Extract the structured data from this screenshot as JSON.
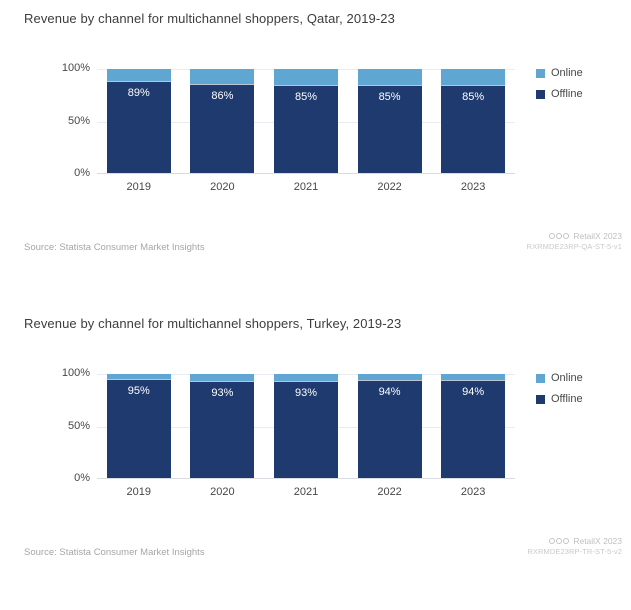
{
  "chart_data": [
    {
      "type": "bar",
      "stacked": true,
      "title": "Revenue by channel for multichannel shoppers, Qatar, 2019-23",
      "categories": [
        "2019",
        "2020",
        "2021",
        "2022",
        "2023"
      ],
      "series": [
        {
          "name": "Offline",
          "color": "#1e3a6e",
          "values": [
            89,
            86,
            85,
            85,
            85
          ]
        },
        {
          "name": "Online",
          "color": "#5fa7d2",
          "values": [
            11,
            14,
            15,
            15,
            15
          ]
        }
      ],
      "ylim": [
        0,
        100
      ],
      "yticks": [
        {
          "label": "0%",
          "value": 0
        },
        {
          "label": "50%",
          "value": 50
        },
        {
          "label": "100%",
          "value": 100
        }
      ],
      "grid": true,
      "legend_position": "right",
      "source": "Source: Statista Consumer Market Insights",
      "attribution": "RetailX 2023",
      "doc_code": "RXRMDE23RP-QA-ST-5-v1"
    },
    {
      "type": "bar",
      "stacked": true,
      "title": "Revenue by channel for multichannel shoppers, Turkey, 2019-23",
      "categories": [
        "2019",
        "2020",
        "2021",
        "2022",
        "2023"
      ],
      "series": [
        {
          "name": "Offline",
          "color": "#1e3a6e",
          "values": [
            95,
            93,
            93,
            94,
            94
          ]
        },
        {
          "name": "Online",
          "color": "#5fa7d2",
          "values": [
            5,
            7,
            7,
            6,
            6
          ]
        }
      ],
      "ylim": [
        0,
        100
      ],
      "yticks": [
        {
          "label": "0%",
          "value": 0
        },
        {
          "label": "50%",
          "value": 50
        },
        {
          "label": "100%",
          "value": 100
        }
      ],
      "grid": true,
      "legend_position": "right",
      "source": "Source: Statista Consumer Market Insights",
      "attribution": "RetailX 2023",
      "doc_code": "RXRMDE23RP-TR-ST-5-v2"
    }
  ]
}
